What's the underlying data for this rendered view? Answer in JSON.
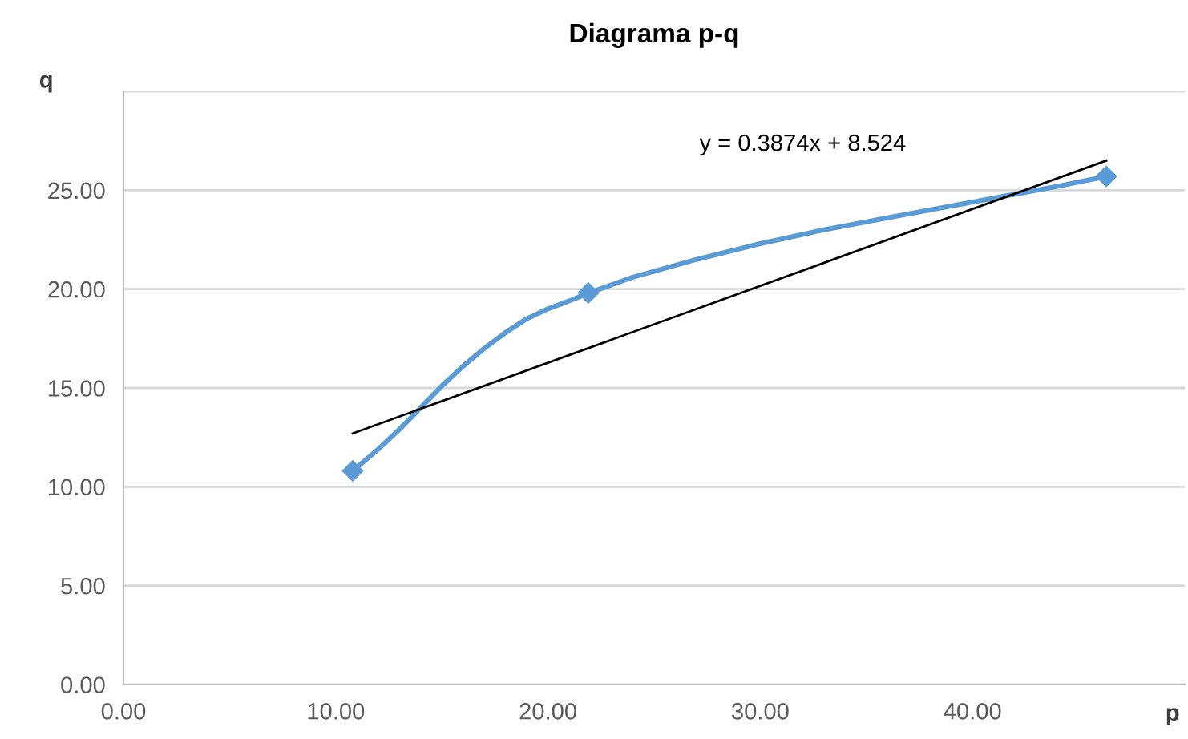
{
  "chart_data": {
    "type": "line",
    "title": "Diagrama p-q",
    "xlabel": "p",
    "ylabel": "q",
    "series": [
      {
        "x": [
          10.8,
          12,
          13,
          14,
          15,
          16,
          17,
          18,
          19,
          20,
          21,
          21.9,
          24,
          27,
          30,
          33,
          36,
          39,
          42,
          44,
          46.3
        ],
        "values": [
          10.8,
          11.9,
          12.9,
          14.0,
          15.1,
          16.1,
          17.0,
          17.8,
          18.5,
          19.0,
          19.4,
          19.8,
          20.6,
          21.5,
          22.3,
          23.0,
          23.6,
          24.2,
          24.8,
          25.2,
          25.7
        ],
        "color": "#5b9bd5",
        "marker": "none"
      },
      {
        "type": "scatter",
        "x": [
          10.8,
          21.9,
          46.3
        ],
        "values": [
          10.8,
          19.8,
          25.7
        ],
        "color": "#5b9bd5",
        "marker": "diamond"
      },
      {
        "type": "line",
        "x": [
          10.8,
          46.3
        ],
        "values": [
          12.7,
          26.5
        ],
        "color": "#000000",
        "marker": "none"
      }
    ],
    "annotations": [
      "y = 0.3874x + 8.524"
    ],
    "xlim": [
      0,
      50
    ],
    "xticks": [
      {
        "value": 0,
        "label": "0.00"
      },
      {
        "value": 10,
        "label": "10.00"
      },
      {
        "value": 20,
        "label": "20.00"
      },
      {
        "value": 30,
        "label": "30.00"
      },
      {
        "value": 40,
        "label": "40.00"
      }
    ],
    "ylim": [
      0,
      30
    ],
    "yticks": [
      {
        "value": 0,
        "label": "0.00"
      },
      {
        "value": 5,
        "label": "5.00"
      },
      {
        "value": 10,
        "label": "10.00"
      },
      {
        "value": 15,
        "label": "15.00"
      },
      {
        "value": 20,
        "label": "20.00"
      },
      {
        "value": 25,
        "label": "25.00"
      },
      {
        "value": 30,
        "label": null
      }
    ],
    "grid": "y"
  }
}
